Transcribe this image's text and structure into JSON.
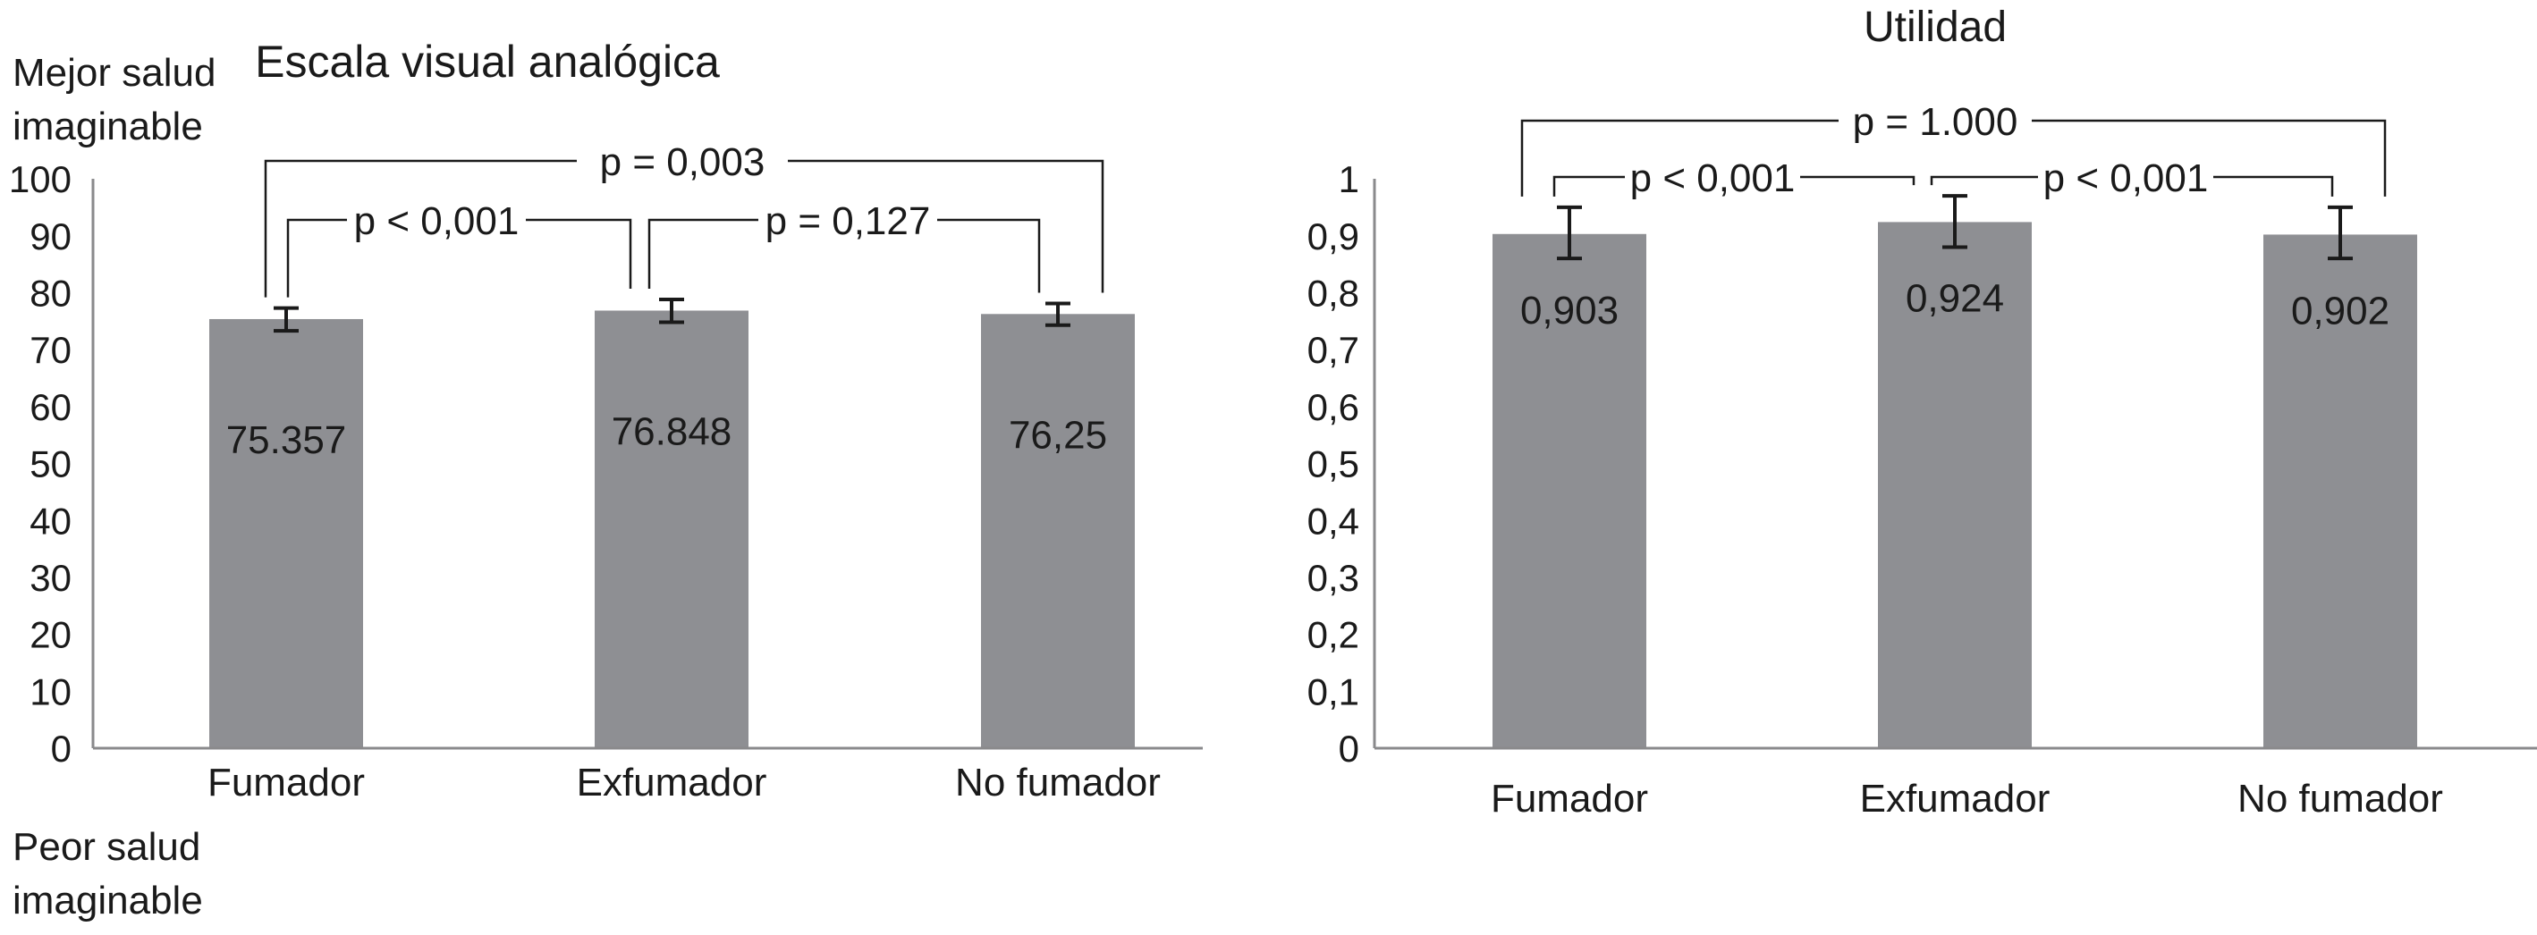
{
  "chart_data": [
    {
      "type": "bar",
      "title": "Escala visual analógica",
      "top_label": [
        "Mejor salud",
        "imaginable"
      ],
      "bottom_label": [
        "Peor salud",
        "imaginable"
      ],
      "categories": [
        "Fumador",
        "Exfumador",
        "No fumador"
      ],
      "values": [
        75.357,
        76.848,
        76.25
      ],
      "value_labels": [
        "75.357",
        "76.848",
        "76,25"
      ],
      "error_low": [
        73.3,
        74.8,
        74.3
      ],
      "error_high": [
        77.3,
        78.8,
        78.1
      ],
      "ylim": [
        0,
        100
      ],
      "yticks": [
        0,
        10,
        20,
        30,
        40,
        50,
        60,
        70,
        80,
        90,
        100
      ],
      "ytick_labels": [
        "0",
        "10",
        "20",
        "30",
        "40",
        "50",
        "60",
        "70",
        "80",
        "90",
        "100"
      ],
      "annotations": [
        {
          "text": "p = 0,003",
          "between": [
            0,
            2
          ]
        },
        {
          "text": "p < 0,001",
          "between": [
            0,
            1
          ]
        },
        {
          "text": "p = 0,127",
          "between": [
            1,
            2
          ]
        }
      ],
      "color": "#8e8f93"
    },
    {
      "type": "bar",
      "title": "Utilidad",
      "categories": [
        "Fumador",
        "Exfumador",
        "No fumador"
      ],
      "values": [
        0.903,
        0.924,
        0.902
      ],
      "value_labels": [
        "0,903",
        "0,924",
        "0,902"
      ],
      "error_low": [
        0.86,
        0.88,
        0.86
      ],
      "error_high": [
        0.95,
        0.97,
        0.95
      ],
      "ylim": [
        0,
        1
      ],
      "yticks": [
        0,
        0.1,
        0.2,
        0.3,
        0.4,
        0.5,
        0.6,
        0.7,
        0.8,
        0.9,
        1
      ],
      "ytick_labels": [
        "0",
        "0,1",
        "0,2",
        "0,3",
        "0,4",
        "0,5",
        "0,6",
        "0,7",
        "0,8",
        "0,9",
        "1"
      ],
      "annotations": [
        {
          "text": "p = 1.000",
          "between": [
            0,
            2
          ]
        },
        {
          "text": "p < 0,001",
          "between": [
            0,
            1
          ]
        },
        {
          "text": "p < 0,001",
          "between": [
            1,
            2
          ]
        }
      ],
      "color": "#8e8f93"
    }
  ]
}
